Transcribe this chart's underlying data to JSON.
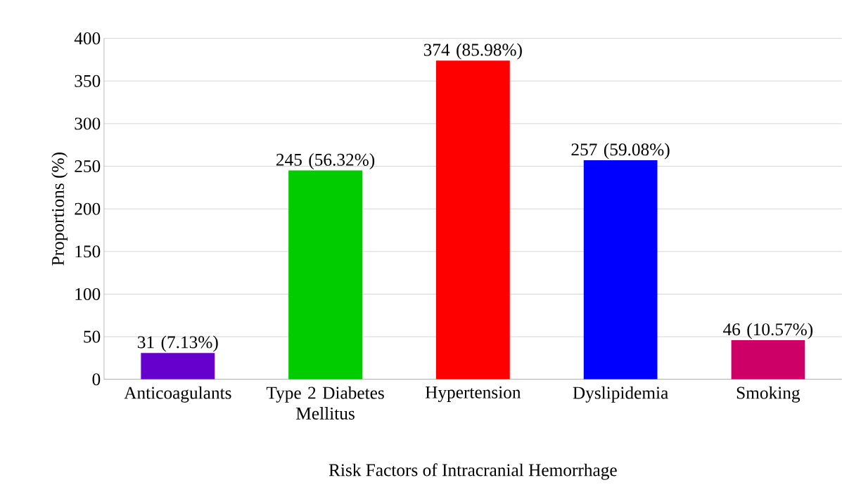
{
  "chart_data": {
    "type": "bar",
    "xlabel": "Risk Factors of Intracranial Hemorrhage",
    "ylabel": "Proportions (%)",
    "categories": [
      "Anticoagulants",
      "Type 2 Diabetes Mellitus",
      "Hypertension",
      "Dyslipidemia",
      "Smoking"
    ],
    "values": [
      31,
      245,
      374,
      257,
      46
    ],
    "colors": [
      "#6600cc",
      "#00cc00",
      "#ff0000",
      "#0000ff",
      "#cc0066"
    ],
    "value_labels": [
      "31 (7.13%)",
      "245 (56.32%)",
      "374 (85.98%)",
      "257 (59.08%)",
      "46 (10.57%)"
    ],
    "ylim": [
      0,
      400
    ],
    "yticks": [
      0,
      50,
      100,
      150,
      200,
      250,
      300,
      350,
      400
    ],
    "grid": "y"
  }
}
